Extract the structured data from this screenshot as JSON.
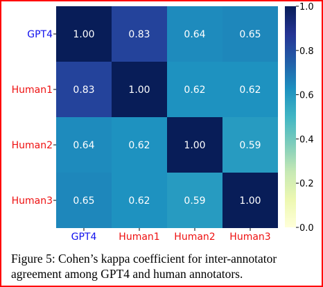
{
  "chart_data": {
    "type": "heatmap",
    "title": "",
    "row_labels": [
      "GPT4",
      "Human1",
      "Human2",
      "Human3"
    ],
    "col_labels": [
      "GPT4",
      "Human1",
      "Human2",
      "Human3"
    ],
    "label_colors": [
      "#1010ee",
      "#ee1010",
      "#ee1010",
      "#ee1010"
    ],
    "values": [
      [
        1.0,
        0.83,
        0.64,
        0.65
      ],
      [
        0.83,
        1.0,
        0.62,
        0.62
      ],
      [
        0.64,
        0.62,
        1.0,
        0.59
      ],
      [
        0.65,
        0.62,
        0.59,
        1.0
      ]
    ],
    "display_values": [
      [
        "1.00",
        "0.83",
        "0.64",
        "0.65"
      ],
      [
        "0.83",
        "1.00",
        "0.62",
        "0.62"
      ],
      [
        "0.64",
        "0.62",
        "1.00",
        "0.59"
      ],
      [
        "0.65",
        "0.62",
        "0.59",
        "1.00"
      ]
    ],
    "colormap": "YlGnBu",
    "colorbar": {
      "range": [
        0.0,
        1.0
      ],
      "ticks": [
        "0.0",
        "0.2",
        "0.4",
        "0.6",
        "0.8",
        "1.0"
      ]
    }
  },
  "caption": {
    "text": "Figure 5: Cohen’s kappa coefficient for inter-annotator agreement among GPT4 and human annotators."
  },
  "colors": {
    "frame": "#ff0000"
  }
}
